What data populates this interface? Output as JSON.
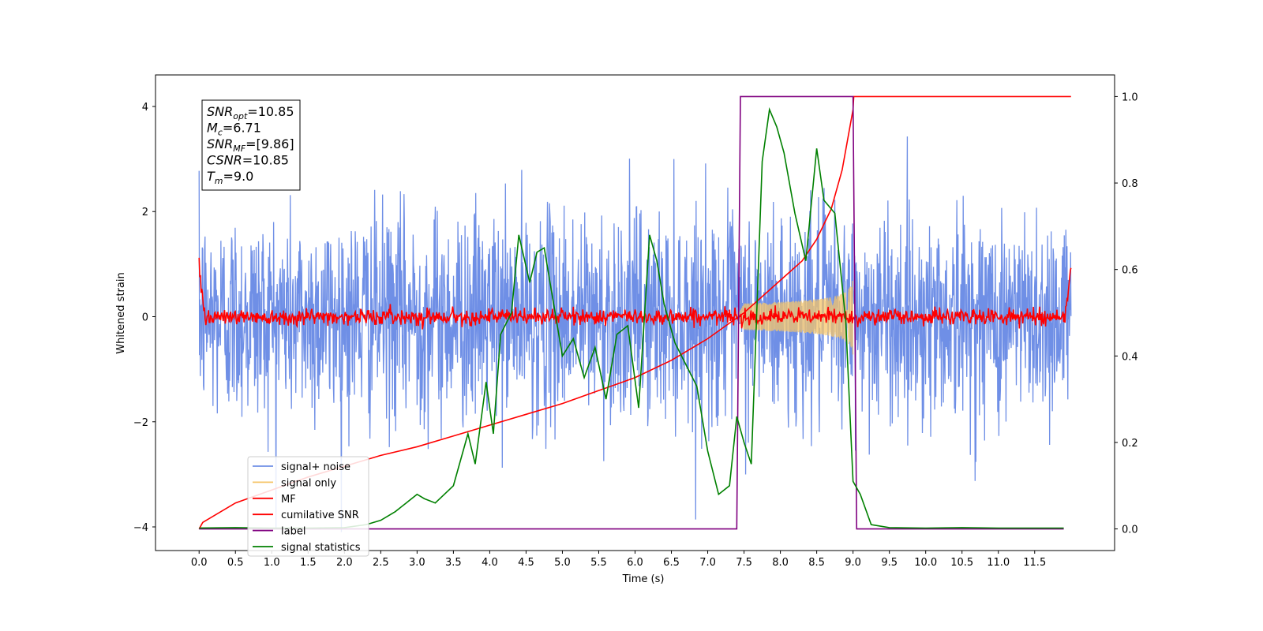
{
  "chart_data": {
    "type": "line",
    "xlabel": "Time (s)",
    "ylabel": "Whitened strain",
    "xlim": [
      -0.6,
      12.6
    ],
    "ylim_left": [
      -4.45,
      4.6
    ],
    "ylim_right": [
      -0.05,
      1.05
    ],
    "x_ticks": [
      "0.0",
      "0.5",
      "1.0",
      "1.5",
      "2.0",
      "2.5",
      "3.0",
      "3.5",
      "4.0",
      "4.5",
      "5.0",
      "5.5",
      "6.0",
      "6.5",
      "7.0",
      "7.5",
      "8.0",
      "8.5",
      "9.0",
      "9.5",
      "10.0",
      "10.5",
      "11.0",
      "11.5"
    ],
    "y_left_ticks": [
      4,
      2,
      0,
      -2,
      -4
    ],
    "y_left_tick_labels": [
      "4",
      "2",
      "0",
      "−2",
      "−4"
    ],
    "y_right_ticks": [
      "1.0",
      "0.8",
      "0.6",
      "0.4",
      "0.2",
      "0.0"
    ],
    "grid": false,
    "legend_position": "lower-left",
    "colors": {
      "signal_noise": "#6f8fe6",
      "signal_only": "#f5c56a",
      "mf": "#ff0000",
      "cumulative_snr": "#ff0000",
      "label": "#800080",
      "signal_statistics": "#008000"
    },
    "annotation": {
      "lines": [
        {
          "label": "SNR",
          "sub": "opt",
          "value": "=10.85"
        },
        {
          "label": "M",
          "sub": "c",
          "value": "=6.71"
        },
        {
          "label": "SNR",
          "sub": "MF",
          "value": "=[9.86]"
        },
        {
          "label": "CSNR",
          "sub": "",
          "value": "=10.85"
        },
        {
          "label": "T",
          "sub": "m",
          "value": "=9.0"
        }
      ]
    },
    "series": [
      {
        "name": "signal+ noise",
        "axis": "left",
        "x_range": [
          0,
          12
        ],
        "envelope_sigma": 1.0,
        "note_style": "noisy"
      },
      {
        "name": "signal only",
        "axis": "left",
        "x_range": [
          7.4,
          9.0
        ],
        "amplitude_at_end": 0.75
      },
      {
        "name": "MF",
        "axis": "left",
        "x_range": [
          0,
          12
        ],
        "baseline": 0.0,
        "edge_value": 1.0
      },
      {
        "name": "cumilative SNR",
        "axis": "right",
        "x": [
          0.0,
          0.05,
          0.5,
          1.0,
          1.5,
          2.0,
          2.5,
          3.0,
          3.5,
          4.0,
          4.5,
          5.0,
          5.5,
          6.0,
          6.5,
          7.0,
          7.5,
          8.0,
          8.3,
          8.5,
          8.7,
          8.85,
          9.0,
          9.01,
          12.0
        ],
        "y": [
          0.0,
          0.015,
          0.06,
          0.09,
          0.12,
          0.145,
          0.17,
          0.19,
          0.215,
          0.24,
          0.265,
          0.29,
          0.32,
          0.35,
          0.39,
          0.44,
          0.5,
          0.575,
          0.62,
          0.67,
          0.74,
          0.83,
          0.97,
          1.0,
          1.0
        ]
      },
      {
        "name": "label",
        "axis": "right",
        "x": [
          0.0,
          7.4,
          7.45,
          9.0,
          9.05,
          11.9
        ],
        "y": [
          0.0,
          0.0,
          1.0,
          1.0,
          0.0,
          0.0
        ]
      },
      {
        "name": "signal statistics",
        "axis": "right",
        "x": [
          0.0,
          0.5,
          1.0,
          1.5,
          2.0,
          2.3,
          2.5,
          2.7,
          2.85,
          3.0,
          3.1,
          3.25,
          3.5,
          3.7,
          3.8,
          3.95,
          4.05,
          4.15,
          4.3,
          4.4,
          4.55,
          4.65,
          4.75,
          4.85,
          5.0,
          5.15,
          5.3,
          5.45,
          5.6,
          5.75,
          5.9,
          6.05,
          6.2,
          6.3,
          6.4,
          6.55,
          6.7,
          6.85,
          7.0,
          7.15,
          7.3,
          7.4,
          7.5,
          7.6,
          7.75,
          7.85,
          7.95,
          8.05,
          8.2,
          8.35,
          8.5,
          8.6,
          8.75,
          8.9,
          9.0,
          9.1,
          9.25,
          9.5,
          10.0,
          10.5,
          11.0,
          11.5,
          11.9
        ],
        "y": [
          0.002,
          0.003,
          0.002,
          0.002,
          0.003,
          0.01,
          0.02,
          0.04,
          0.06,
          0.08,
          0.07,
          0.06,
          0.1,
          0.22,
          0.15,
          0.34,
          0.22,
          0.45,
          0.5,
          0.68,
          0.57,
          0.64,
          0.65,
          0.55,
          0.4,
          0.44,
          0.35,
          0.42,
          0.3,
          0.45,
          0.47,
          0.28,
          0.68,
          0.62,
          0.52,
          0.43,
          0.38,
          0.33,
          0.18,
          0.08,
          0.1,
          0.26,
          0.2,
          0.15,
          0.85,
          0.97,
          0.93,
          0.87,
          0.73,
          0.62,
          0.88,
          0.76,
          0.73,
          0.48,
          0.11,
          0.08,
          0.01,
          0.003,
          0.002,
          0.003,
          0.002,
          0.002,
          0.002
        ]
      }
    ]
  }
}
